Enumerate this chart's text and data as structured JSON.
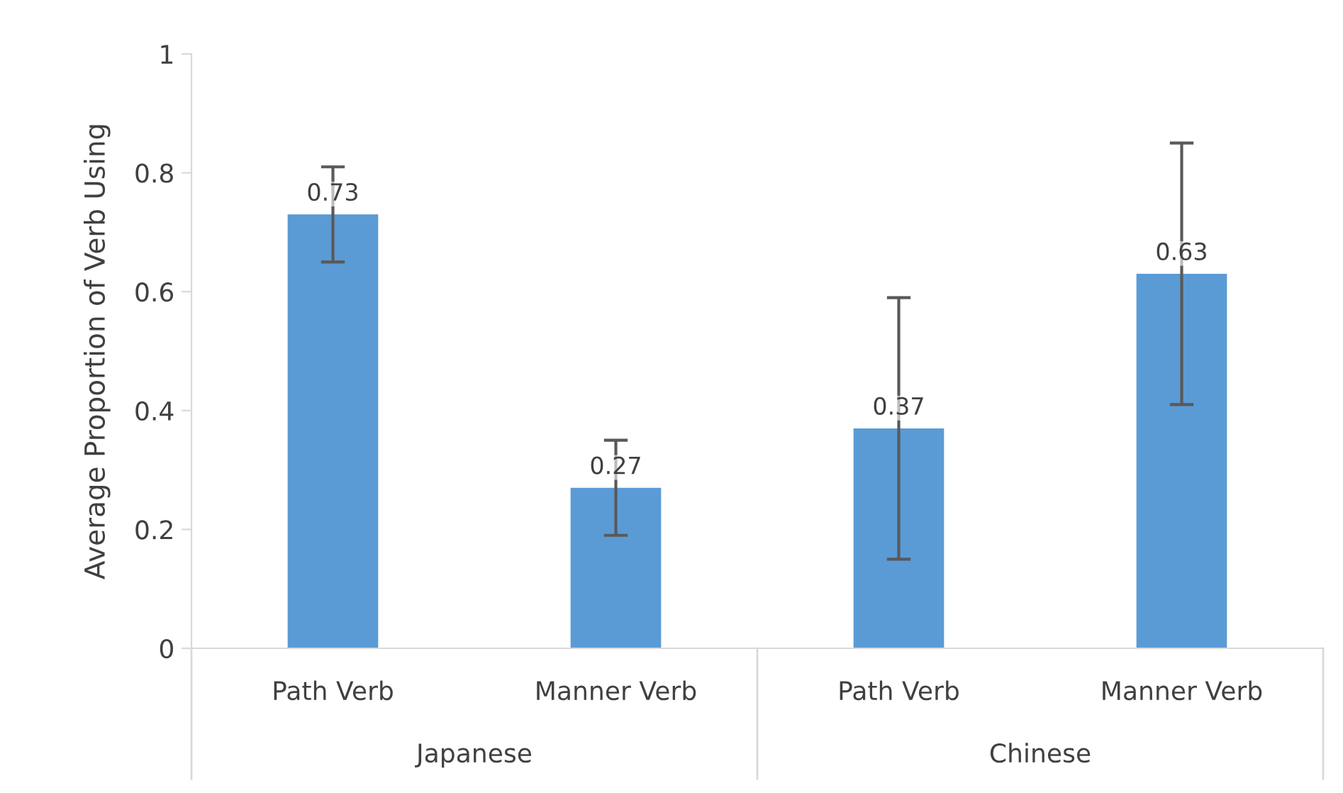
{
  "chart_data": {
    "type": "bar",
    "ylabel": "Average Proportion of Verb Using",
    "categories": [
      "Path Verb",
      "Manner Verb",
      "Path Verb",
      "Manner Verb"
    ],
    "values": [
      0.73,
      0.27,
      0.37,
      0.63
    ],
    "errors": [
      0.08,
      0.08,
      0.22,
      0.22
    ],
    "color": "#5b9bd5",
    "data_labels": true,
    "ylim": [
      0,
      1
    ],
    "yticks": [
      0,
      0.2,
      0.4,
      0.6,
      0.8,
      1
    ],
    "grid": false,
    "annotations": [
      "Japanese",
      "Chinese"
    ]
  }
}
